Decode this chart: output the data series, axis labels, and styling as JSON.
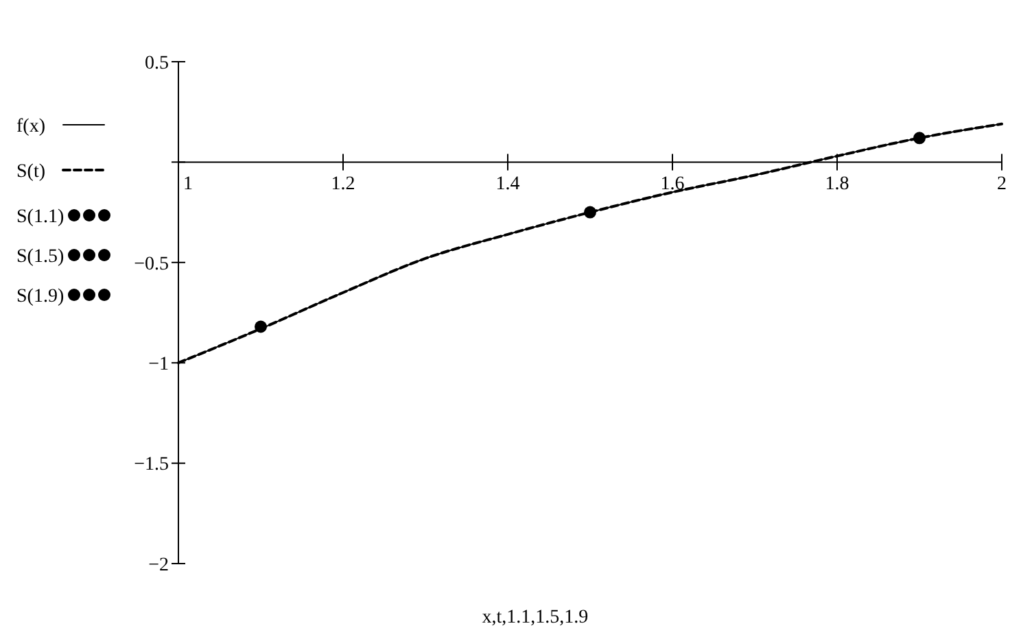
{
  "chart_data": {
    "type": "line",
    "xlabel": "x,t,1.1,1.5,1.9",
    "xlim": [
      1,
      2
    ],
    "ylim": [
      -2,
      0.5
    ],
    "xticks": [
      1,
      1.2,
      1.4,
      1.6,
      1.8,
      2
    ],
    "yticks": [
      0.5,
      {
        "value": 0,
        "label": null
      },
      -0.5,
      -1,
      -1.5,
      -2
    ],
    "legend": "left",
    "grid": false,
    "series": [
      {
        "name": "f(x)",
        "color": "#000000",
        "line_style": "solid",
        "marker": "none",
        "x": [
          1,
          1.1,
          1.2,
          1.3,
          1.4,
          1.5,
          1.6,
          1.7,
          1.8,
          1.9,
          2
        ],
        "values": [
          -1,
          -0.83,
          -0.65,
          -0.48,
          -0.36,
          -0.25,
          -0.15,
          -0.065,
          0.03,
          0.12,
          0.19
        ]
      },
      {
        "name": "S(t)",
        "color": "#000000",
        "line_style": "dashed",
        "marker": "none",
        "x": [
          1,
          1.1,
          1.2,
          1.3,
          1.4,
          1.5,
          1.6,
          1.7,
          1.8,
          1.9,
          2
        ],
        "values": [
          -1,
          -0.83,
          -0.65,
          -0.48,
          -0.36,
          -0.25,
          -0.15,
          -0.065,
          0.03,
          0.12,
          0.19
        ]
      },
      {
        "name": "S(1.1)",
        "type": "scatter",
        "color": "#000000",
        "marker": "circle",
        "x": [
          1.1
        ],
        "values": [
          -0.82
        ]
      },
      {
        "name": "S(1.5)",
        "type": "scatter",
        "color": "#000000",
        "marker": "circle",
        "x": [
          1.5
        ],
        "values": [
          -0.25
        ]
      },
      {
        "name": "S(1.9)",
        "type": "scatter",
        "color": "#000000",
        "marker": "circle",
        "x": [
          1.9
        ],
        "values": [
          0.12
        ]
      }
    ]
  }
}
